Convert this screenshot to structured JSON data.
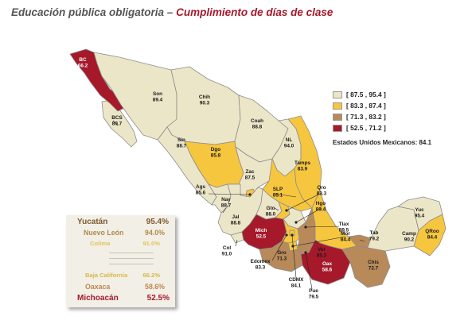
{
  "header": {
    "part1": "Educación pública obligatoria",
    "separator": "–",
    "part2": "Cumplimiento de días de clase"
  },
  "legend": {
    "items": [
      {
        "label": "[ 87.5 , 95.4 ]",
        "color": "#ece6c8"
      },
      {
        "label": "[ 83.3 , 87.4 ]",
        "color": "#f6c63f"
      },
      {
        "label": "[ 71.3 , 83.2 ]",
        "color": "#b88a5a"
      },
      {
        "label": "[ 52.5 , 71.2 ]",
        "color": "#a5192b"
      }
    ],
    "national": "Estados Unidos Mexicanos:",
    "national_value": "84.1"
  },
  "states": [
    {
      "code": "BC",
      "value": "66.2",
      "color": "#a5192b"
    },
    {
      "code": "BCS",
      "value": "89.7",
      "color": "#ece6c8"
    },
    {
      "code": "Son",
      "value": "89.4",
      "color": "#ece6c8"
    },
    {
      "code": "Chih",
      "value": "90.3",
      "color": "#ece6c8"
    },
    {
      "code": "Coah",
      "value": "88.8",
      "color": "#ece6c8"
    },
    {
      "code": "Sin",
      "value": "88.7",
      "color": "#ece6c8"
    },
    {
      "code": "Dgo",
      "value": "85.8",
      "color": "#f6c63f"
    },
    {
      "code": "NL",
      "value": "94.0",
      "color": "#ece6c8"
    },
    {
      "code": "Tamps",
      "value": "83.9",
      "color": "#f6c63f"
    },
    {
      "code": "Zac",
      "value": "87.5",
      "color": "#ece6c8"
    },
    {
      "code": "SLP",
      "value": "85.1",
      "color": "#f6c63f"
    },
    {
      "code": "Ags",
      "value": "85.6",
      "color": "#f6c63f"
    },
    {
      "code": "Nay",
      "value": "88.7",
      "color": "#ece6c8"
    },
    {
      "code": "Gto",
      "value": "88.0",
      "color": "#ece6c8"
    },
    {
      "code": "Qro",
      "value": "83.3",
      "color": "#f6c63f"
    },
    {
      "code": "Hgo",
      "value": "89.4",
      "color": "#ece6c8"
    },
    {
      "code": "Jal",
      "value": "88.8",
      "color": "#ece6c8"
    },
    {
      "code": "Col",
      "value": "91.0",
      "color": "#ece6c8"
    },
    {
      "code": "Mich",
      "value": "52.5",
      "color": "#a5192b"
    },
    {
      "code": "Edomex",
      "value": "83.3",
      "color": "#f6c63f"
    },
    {
      "code": "CDMX",
      "value": "84.1",
      "color": "#f6c63f"
    },
    {
      "code": "Tlax",
      "value": "89.5",
      "color": "#ece6c8"
    },
    {
      "code": "Mor",
      "value": "84.4",
      "color": "#f6c63f"
    },
    {
      "code": "Pue",
      "value": "79.5",
      "color": "#b88a5a"
    },
    {
      "code": "Ver",
      "value": "85.3",
      "color": "#f6c63f"
    },
    {
      "code": "Gro",
      "value": "71.3",
      "color": "#b88a5a"
    },
    {
      "code": "Oax",
      "value": "58.6",
      "color": "#a5192b"
    },
    {
      "code": "Chis",
      "value": "72.7",
      "color": "#b88a5a"
    },
    {
      "code": "Tab",
      "value": "79.2",
      "color": "#b88a5a"
    },
    {
      "code": "Camp",
      "value": "90.2",
      "color": "#ece6c8"
    },
    {
      "code": "Yuc",
      "value": "95.4",
      "color": "#ece6c8"
    },
    {
      "code": "QRoo",
      "value": "84.4",
      "color": "#f6c63f"
    }
  ],
  "ranking": {
    "top": [
      {
        "name": "Yucatán",
        "value": "95.4%",
        "color": "#7a5a2e"
      },
      {
        "name": "Nuevo León",
        "value": "94.0%",
        "color": "#b08a50"
      },
      {
        "name": "Colima",
        "value": "91.0%",
        "color": "#e0c45a"
      }
    ],
    "bottom": [
      {
        "name": "Baja California",
        "value": "66.2%",
        "color": "#d9b84a"
      },
      {
        "name": "Oaxaca",
        "value": "58.6%",
        "color": "#c08650"
      },
      {
        "name": "Michoacán",
        "value": "52.5%",
        "color": "#a5192b"
      }
    ]
  }
}
